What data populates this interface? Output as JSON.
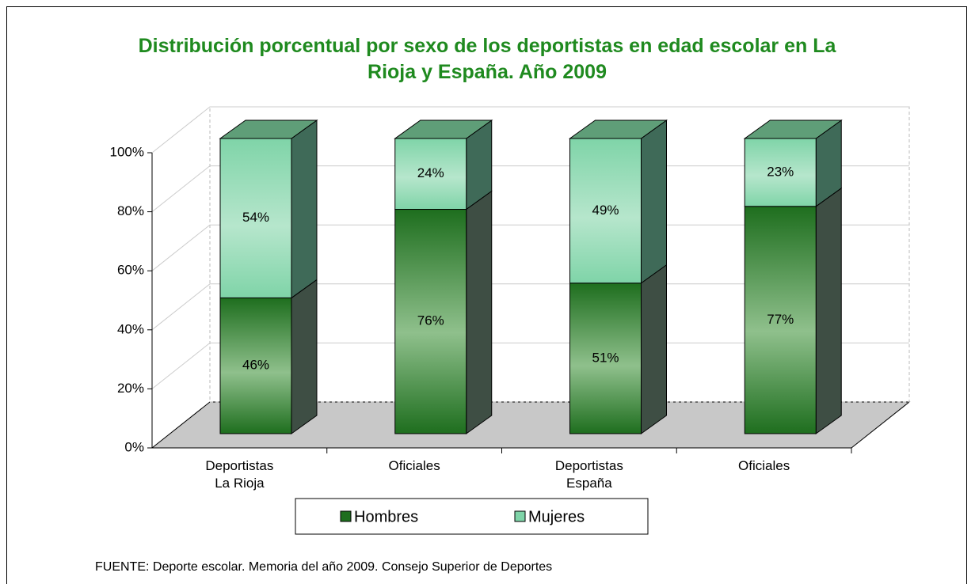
{
  "chart_data": {
    "type": "bar3d_stacked",
    "title": "Distribución porcentual por sexo de los deportistas en edad escolar en La Rioja y España. Año 2009",
    "categories": [
      "Deportistas\nLa Rioja",
      "Oficiales",
      "Deportistas\nEspaña",
      "Oficiales"
    ],
    "series": [
      {
        "name": "Hombres",
        "color": "#1e6e1e",
        "values": [
          46,
          76,
          51,
          77
        ],
        "value_labels": [
          "46%",
          "76%",
          "51%",
          "77%"
        ]
      },
      {
        "name": "Mujeres",
        "color": "#7fd4a8",
        "values": [
          54,
          24,
          49,
          23
        ],
        "value_labels": [
          "54%",
          "24%",
          "49%",
          "23%"
        ]
      }
    ],
    "ylim": [
      0,
      100
    ],
    "yticks": [
      {
        "value": 0,
        "label": "0%"
      },
      {
        "value": 20,
        "label": "20%"
      },
      {
        "value": 40,
        "label": "40%"
      },
      {
        "value": 60,
        "label": "60%"
      },
      {
        "value": 80,
        "label": "80%"
      },
      {
        "value": 100,
        "label": "100%"
      }
    ],
    "grid": true,
    "legend": "bottom",
    "source": "FUENTE: Deporte escolar. Memoria del año 2009. Consejo Superior de Deportes"
  }
}
